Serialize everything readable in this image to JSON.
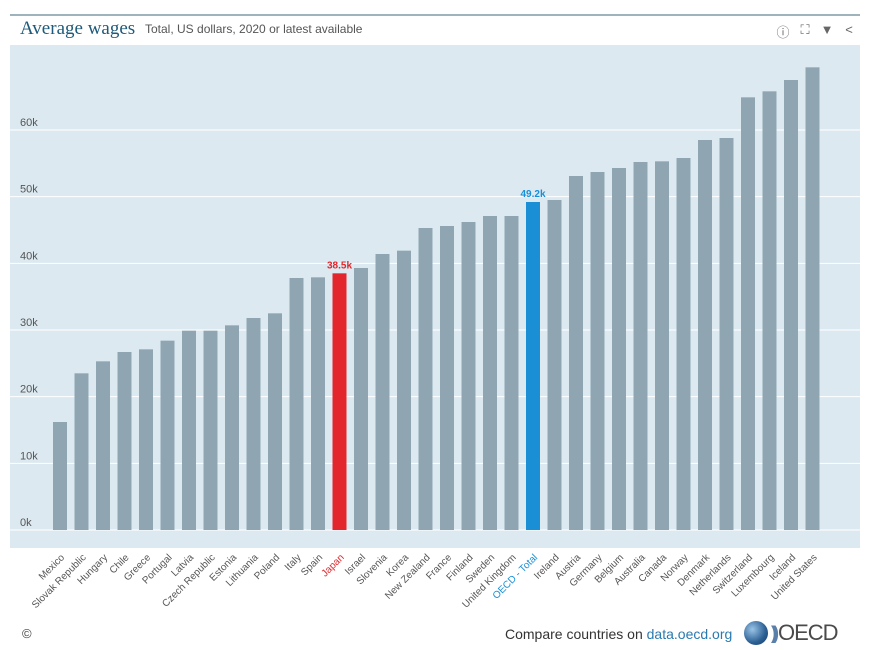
{
  "header": {
    "title": "Average wages",
    "subtitle": "Total, US dollars, 2020 or latest available",
    "icons": [
      "info-icon",
      "fullscreen-icon",
      "download-icon",
      "share-icon"
    ]
  },
  "footer": {
    "copyright": "©",
    "compare_text": "Compare countries on ",
    "link": "data.oecd.org",
    "logo": "OECD"
  },
  "colors": {
    "bar": "#8fa6b2",
    "highlight": "#e3262b",
    "oecd": "#1a8fd6",
    "background": "#dce9f0"
  },
  "chart_data": {
    "type": "bar",
    "title": "Average wages",
    "subtitle": "Total, US dollars, 2020 or latest available",
    "ylim": [
      0,
      70000
    ],
    "yticks": [
      0,
      10000,
      20000,
      30000,
      40000,
      50000,
      60000
    ],
    "ytick_labels": [
      "0k",
      "10k",
      "20k",
      "30k",
      "40k",
      "50k",
      "60k"
    ],
    "grid": true,
    "categories": [
      "Mexico",
      "Slovak Republic",
      "Hungary",
      "Chile",
      "Greece",
      "Portugal",
      "Latvia",
      "Czech Republic",
      "Estonia",
      "Lithuania",
      "Poland",
      "Italy",
      "Spain",
      "Japan",
      "Israel",
      "Slovenia",
      "Korea",
      "New Zealand",
      "France",
      "Finland",
      "Sweden",
      "United Kingdom",
      "OECD - Total",
      "Ireland",
      "Austria",
      "Germany",
      "Belgium",
      "Australia",
      "Canada",
      "Norway",
      "Denmark",
      "Netherlands",
      "Switzerland",
      "Luxembourg",
      "Iceland",
      "United States"
    ],
    "values": [
      16200,
      23500,
      25300,
      26700,
      27100,
      28400,
      29900,
      29900,
      30700,
      31800,
      32500,
      37800,
      37900,
      38500,
      39300,
      41400,
      41900,
      45300,
      45600,
      46200,
      47100,
      47100,
      49200,
      49500,
      53100,
      53700,
      54300,
      55200,
      55300,
      55800,
      58500,
      58800,
      64900,
      65800,
      67500,
      69400
    ],
    "highlights": {
      "Japan": {
        "label": "38.5k",
        "color": "#e3262b"
      },
      "OECD - Total": {
        "label": "49.2k",
        "color": "#1a8fd6"
      }
    }
  }
}
